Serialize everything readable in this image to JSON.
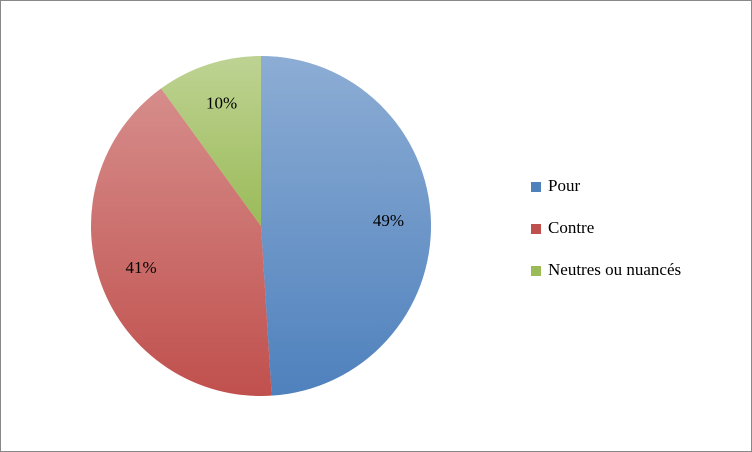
{
  "chart_data": {
    "type": "pie",
    "categories": [
      "Pour",
      "Contre",
      "Neutres ou nuancés"
    ],
    "values": [
      49,
      41,
      10
    ],
    "value_labels": [
      "49%",
      "41%",
      "10%"
    ],
    "colors": [
      "#4f81bd",
      "#c0504d",
      "#9bbb59"
    ],
    "legend": "right"
  }
}
